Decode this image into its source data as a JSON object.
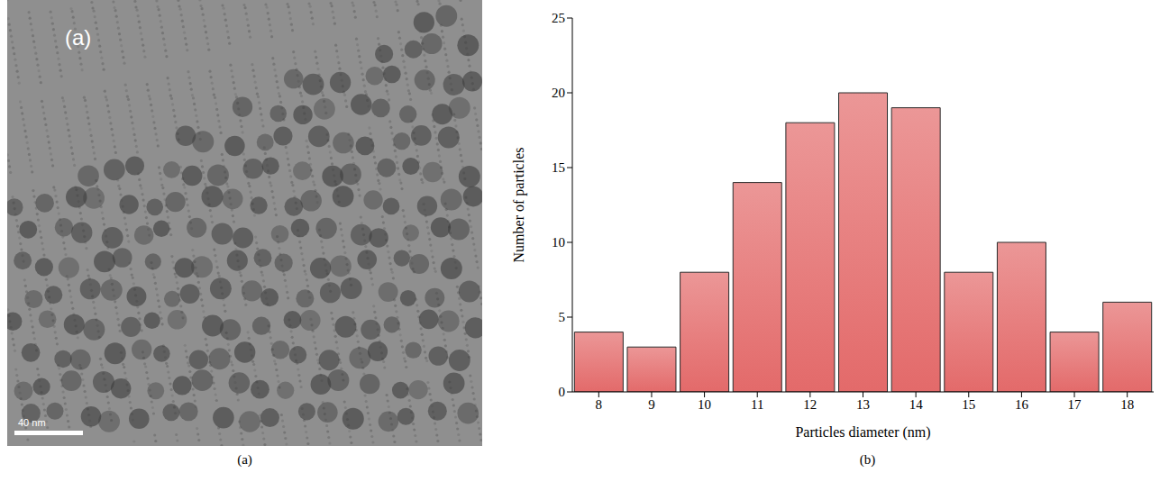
{
  "image": {
    "inset_label": "(a)",
    "scale_bar": "40 nm"
  },
  "captions": [
    "(a)",
    "(b)"
  ],
  "chart_data": {
    "type": "bar",
    "x_label": "Particles diameter (nm)",
    "y_label": "Number of particles",
    "categories": [
      "8",
      "9",
      "10",
      "11",
      "12",
      "13",
      "14",
      "15",
      "16",
      "17",
      "18"
    ],
    "values": [
      4,
      3,
      8,
      14,
      18,
      20,
      19,
      8,
      10,
      4,
      6
    ],
    "color": "#e36a6a",
    "ylim": [
      0,
      25
    ],
    "yticks": [
      0,
      5,
      10,
      15,
      20,
      25
    ],
    "grid": false
  }
}
